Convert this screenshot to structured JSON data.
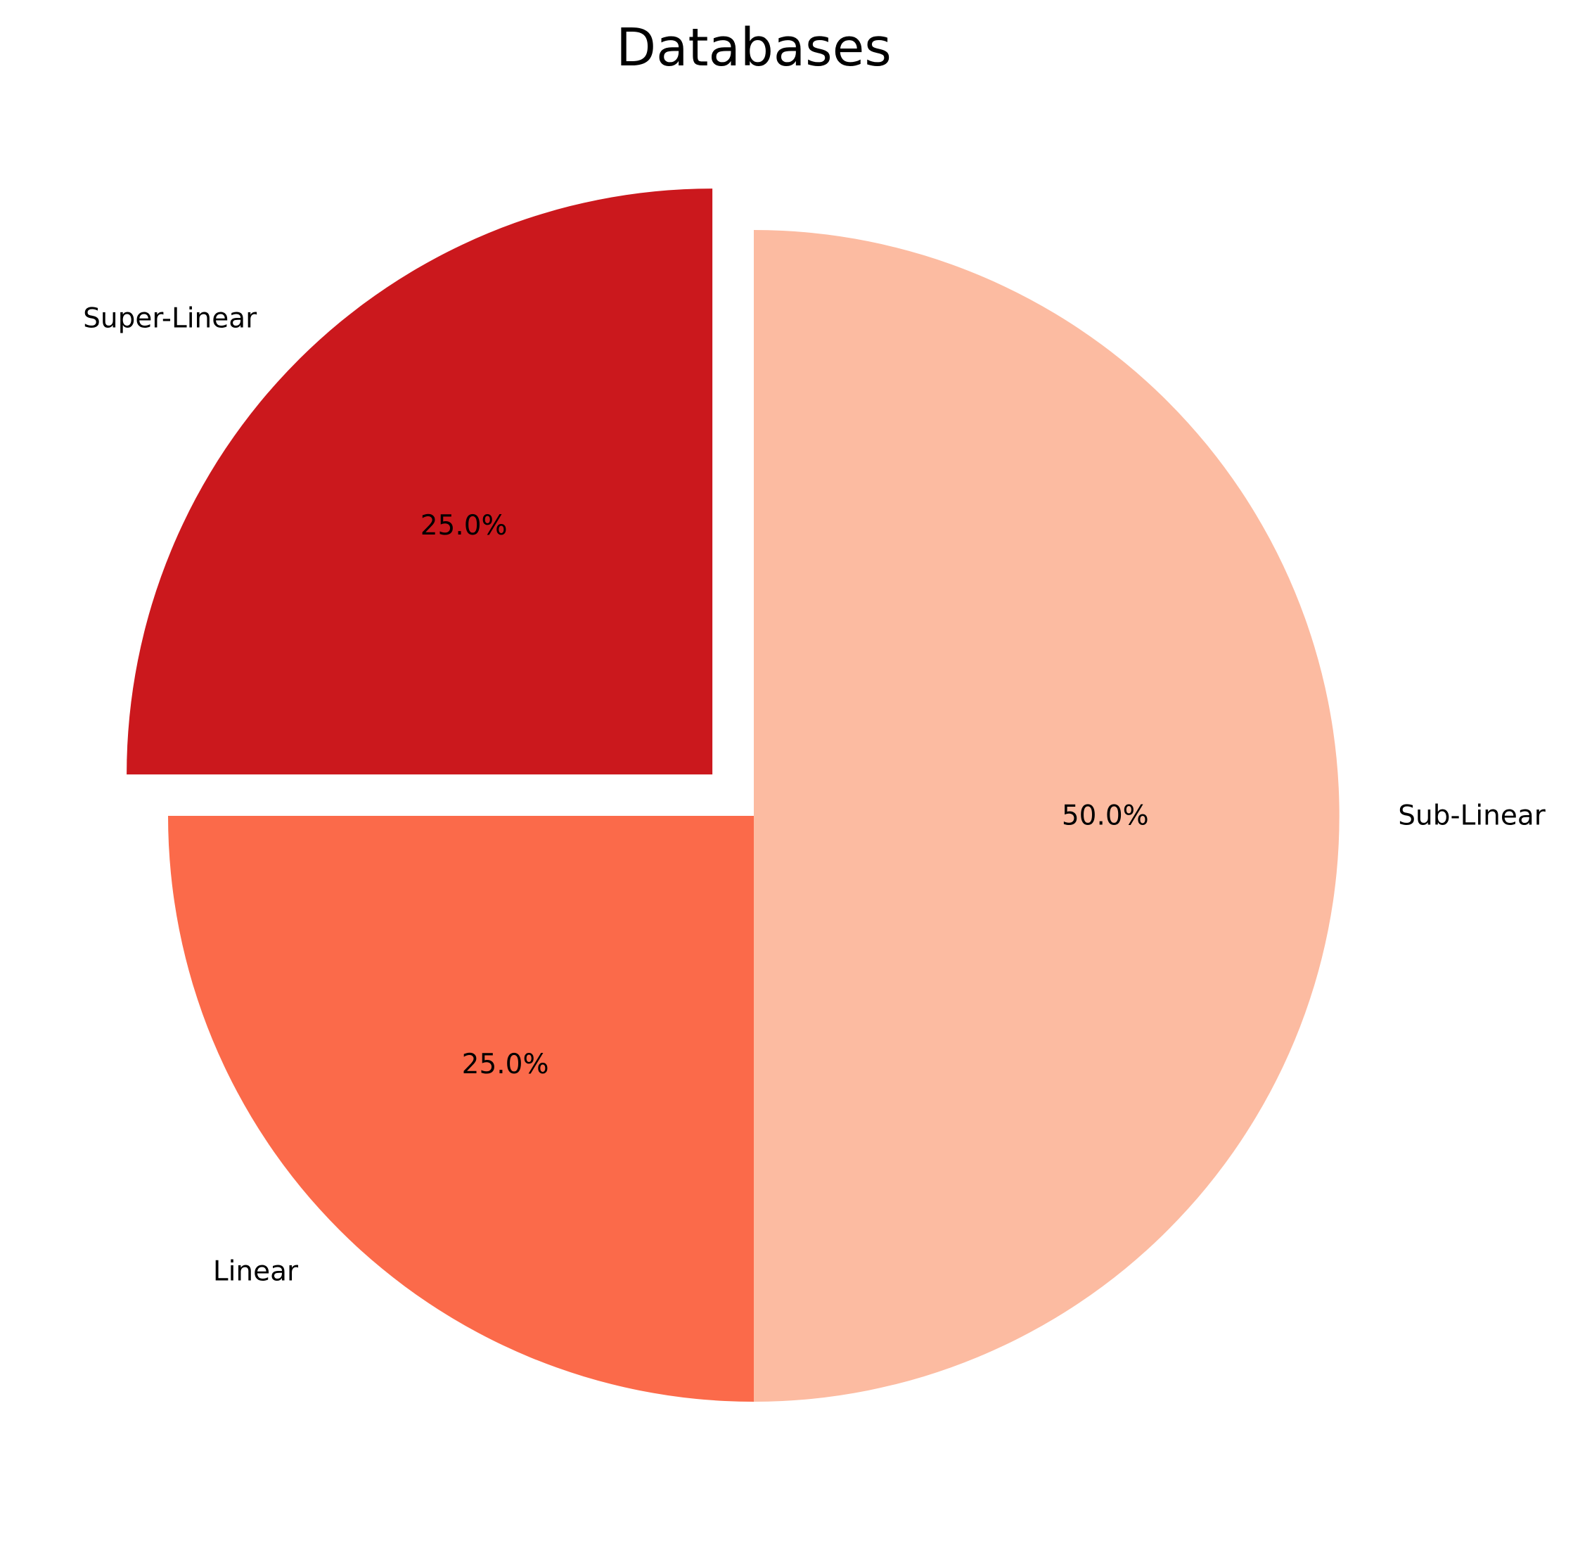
{
  "chart_data": {
    "type": "pie",
    "title": "Databases",
    "slices": [
      {
        "label": "Super-Linear",
        "value": 25.0,
        "pct_text": "25.0%",
        "color": "#cb181d",
        "exploded": true
      },
      {
        "label": "Linear",
        "value": 25.0,
        "pct_text": "25.0%",
        "color": "#fb6a4a",
        "exploded": false
      },
      {
        "label": "Sub-Linear",
        "value": 50.0,
        "pct_text": "50.0%",
        "color": "#fcbba1",
        "exploded": false
      }
    ],
    "start_angle_deg": 90,
    "direction": "counterclockwise",
    "legend": "none"
  }
}
